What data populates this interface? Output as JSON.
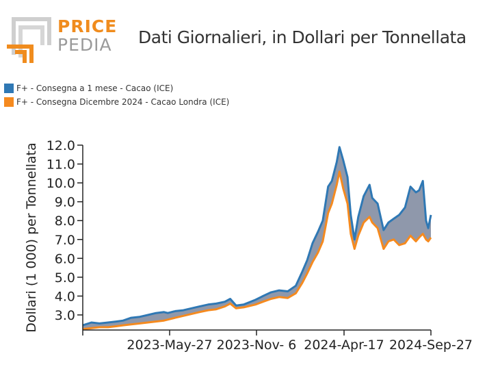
{
  "logo": {
    "price": "PRICE",
    "pedia": "PEDIA",
    "accent": "#f08c1e",
    "grey": "#9a9a9a"
  },
  "title": "Dati Giornalieri, in Dollari per Tonnellata",
  "chart_data": {
    "type": "area",
    "title": "Dati Giornalieri, in Dollari per Tonnellata",
    "xlabel": "",
    "ylabel": "Dollari (1 000) per Tonnellata",
    "ylim": [
      2.2,
      12.0
    ],
    "yticks": [
      "3.0",
      "4.0",
      "5.0",
      "6.0",
      "7.0",
      "8.0",
      "9.0",
      "10.0",
      "11.0",
      "12.0"
    ],
    "xlim": [
      "2022-12-20",
      "2024-09-27"
    ],
    "xticks": [
      "2023-May-27",
      "2023-Nov- 6",
      "2024-Apr-17",
      "2024-Sep-27"
    ],
    "fill_between_series": "#8f98ab",
    "legend_position": "top-left",
    "series": [
      {
        "name": "F+ - Consegna a 1 mese - Cacao (ICE)",
        "color": "#2f78b4",
        "points": [
          [
            "2022-12-20",
            2.45
          ],
          [
            "2023-01-05",
            2.6
          ],
          [
            "2023-01-20",
            2.55
          ],
          [
            "2023-02-05",
            2.6
          ],
          [
            "2023-02-20",
            2.65
          ],
          [
            "2023-03-05",
            2.7
          ],
          [
            "2023-03-20",
            2.85
          ],
          [
            "2023-04-05",
            2.9
          ],
          [
            "2023-04-20",
            3.0
          ],
          [
            "2023-05-05",
            3.1
          ],
          [
            "2023-05-20",
            3.15
          ],
          [
            "2023-05-27",
            3.1
          ],
          [
            "2023-06-10",
            3.2
          ],
          [
            "2023-06-25",
            3.25
          ],
          [
            "2023-07-10",
            3.35
          ],
          [
            "2023-07-25",
            3.45
          ],
          [
            "2023-08-10",
            3.55
          ],
          [
            "2023-08-25",
            3.6
          ],
          [
            "2023-09-10",
            3.7
          ],
          [
            "2023-09-20",
            3.85
          ],
          [
            "2023-10-01",
            3.5
          ],
          [
            "2023-10-15",
            3.55
          ],
          [
            "2023-11-06",
            3.8
          ],
          [
            "2023-11-20",
            4.0
          ],
          [
            "2023-12-05",
            4.2
          ],
          [
            "2023-12-20",
            4.3
          ],
          [
            "2024-01-05",
            4.25
          ],
          [
            "2024-01-20",
            4.55
          ],
          [
            "2024-02-01",
            5.3
          ],
          [
            "2024-02-10",
            5.9
          ],
          [
            "2024-02-20",
            6.8
          ],
          [
            "2024-03-01",
            7.4
          ],
          [
            "2024-03-10",
            8.0
          ],
          [
            "2024-03-20",
            9.8
          ],
          [
            "2024-03-27",
            10.1
          ],
          [
            "2024-04-05",
            11.1
          ],
          [
            "2024-04-10",
            11.9
          ],
          [
            "2024-04-17",
            11.2
          ],
          [
            "2024-04-25",
            10.3
          ],
          [
            "2024-05-01",
            8.3
          ],
          [
            "2024-05-08",
            7.0
          ],
          [
            "2024-05-15",
            8.2
          ],
          [
            "2024-05-25",
            9.3
          ],
          [
            "2024-06-05",
            9.9
          ],
          [
            "2024-06-10",
            9.2
          ],
          [
            "2024-06-20",
            8.9
          ],
          [
            "2024-07-01",
            7.5
          ],
          [
            "2024-07-10",
            7.9
          ],
          [
            "2024-07-20",
            8.1
          ],
          [
            "2024-07-30",
            8.3
          ],
          [
            "2024-08-10",
            8.7
          ],
          [
            "2024-08-20",
            9.8
          ],
          [
            "2024-08-30",
            9.5
          ],
          [
            "2024-09-05",
            9.6
          ],
          [
            "2024-09-12",
            10.1
          ],
          [
            "2024-09-18",
            8.0
          ],
          [
            "2024-09-22",
            7.6
          ],
          [
            "2024-09-27",
            8.3
          ]
        ]
      },
      {
        "name": "F+ - Consegna Dicembre 2024 - Cacao Londra (ICE)",
        "color": "#f58a1f",
        "points": [
          [
            "2022-12-20",
            2.25
          ],
          [
            "2023-01-05",
            2.3
          ],
          [
            "2023-01-20",
            2.35
          ],
          [
            "2023-02-05",
            2.35
          ],
          [
            "2023-02-20",
            2.4
          ],
          [
            "2023-03-05",
            2.45
          ],
          [
            "2023-03-20",
            2.5
          ],
          [
            "2023-04-05",
            2.55
          ],
          [
            "2023-04-20",
            2.6
          ],
          [
            "2023-05-05",
            2.65
          ],
          [
            "2023-05-20",
            2.7
          ],
          [
            "2023-05-27",
            2.75
          ],
          [
            "2023-06-10",
            2.85
          ],
          [
            "2023-06-25",
            2.95
          ],
          [
            "2023-07-10",
            3.05
          ],
          [
            "2023-07-25",
            3.15
          ],
          [
            "2023-08-10",
            3.25
          ],
          [
            "2023-08-25",
            3.3
          ],
          [
            "2023-09-10",
            3.45
          ],
          [
            "2023-09-20",
            3.6
          ],
          [
            "2023-10-01",
            3.35
          ],
          [
            "2023-10-15",
            3.4
          ],
          [
            "2023-11-06",
            3.55
          ],
          [
            "2023-11-20",
            3.7
          ],
          [
            "2023-12-05",
            3.85
          ],
          [
            "2023-12-20",
            3.95
          ],
          [
            "2024-01-05",
            3.9
          ],
          [
            "2024-01-20",
            4.15
          ],
          [
            "2024-02-01",
            4.7
          ],
          [
            "2024-02-10",
            5.2
          ],
          [
            "2024-02-20",
            5.8
          ],
          [
            "2024-03-01",
            6.3
          ],
          [
            "2024-03-10",
            6.9
          ],
          [
            "2024-03-20",
            8.4
          ],
          [
            "2024-03-27",
            8.9
          ],
          [
            "2024-04-05",
            9.9
          ],
          [
            "2024-04-10",
            10.6
          ],
          [
            "2024-04-17",
            9.7
          ],
          [
            "2024-04-25",
            8.9
          ],
          [
            "2024-05-01",
            7.3
          ],
          [
            "2024-05-08",
            6.5
          ],
          [
            "2024-05-15",
            7.2
          ],
          [
            "2024-05-25",
            7.9
          ],
          [
            "2024-06-05",
            8.2
          ],
          [
            "2024-06-10",
            7.9
          ],
          [
            "2024-06-20",
            7.6
          ],
          [
            "2024-07-01",
            6.5
          ],
          [
            "2024-07-10",
            6.9
          ],
          [
            "2024-07-20",
            7.0
          ],
          [
            "2024-07-30",
            6.7
          ],
          [
            "2024-08-10",
            6.8
          ],
          [
            "2024-08-20",
            7.2
          ],
          [
            "2024-08-30",
            6.9
          ],
          [
            "2024-09-05",
            7.1
          ],
          [
            "2024-09-12",
            7.3
          ],
          [
            "2024-09-18",
            7.0
          ],
          [
            "2024-09-22",
            6.9
          ],
          [
            "2024-09-27",
            7.1
          ]
        ]
      }
    ]
  }
}
